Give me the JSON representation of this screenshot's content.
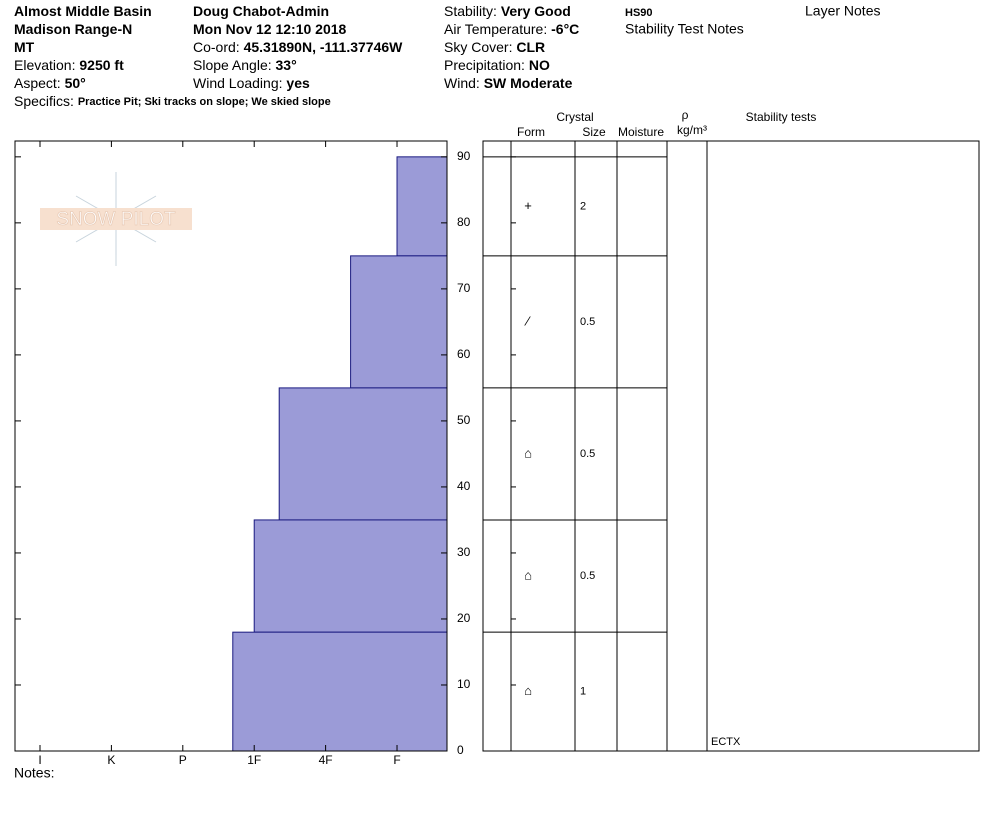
{
  "header": {
    "col1": [
      {
        "value": "Almost Middle Basin"
      },
      {
        "value": "Madison Range-N"
      },
      {
        "value": "MT"
      },
      {
        "label": "Elevation:",
        "value": "9250 ft"
      },
      {
        "label": "Aspect:",
        "value": "50°"
      }
    ],
    "specifics": {
      "label": "Specifics:",
      "value": "Practice Pit; Ski tracks on slope; We skied slope"
    },
    "col2": [
      {
        "value": "Doug Chabot-Admin"
      },
      {
        "value": "Mon Nov 12 12:10 2018"
      },
      {
        "label": "Co-ord:",
        "value": "45.31890N, -111.37746W"
      },
      {
        "label": "Slope Angle:",
        "value": "33°"
      },
      {
        "label": "Wind Loading:",
        "value": "yes"
      }
    ],
    "col3": [
      {
        "label": "Stability:",
        "value": "Very Good"
      },
      {
        "label": "Air Temperature:",
        "value": "-6°C"
      },
      {
        "label": "Sky Cover:",
        "value": "CLR"
      },
      {
        "label": "Precipitation:",
        "value": "NO"
      },
      {
        "label": "Wind:",
        "value": "SW Moderate"
      }
    ],
    "hs": "HS90",
    "stability_test_notes": "Stability Test Notes",
    "layer_notes": "Layer Notes"
  },
  "logo": "SNOW PILOT",
  "columns": {
    "crystal": "Crystal",
    "form": "Form",
    "size": "Size",
    "moisture": "Moisture",
    "rho": "ρ",
    "density_unit": "kg/m³",
    "stability_tests": "Stability tests"
  },
  "chart_data": {
    "type": "snow-profile",
    "ylim": [
      0,
      92.4
    ],
    "yticks": [
      0,
      10,
      20,
      30,
      40,
      50,
      60,
      70,
      80,
      90
    ],
    "xlim": [
      0.3,
      6.35
    ],
    "xticks": [
      {
        "value": 6,
        "label": "I"
      },
      {
        "value": 5,
        "label": "K"
      },
      {
        "value": 4,
        "label": "P"
      },
      {
        "value": 3,
        "label": "1F"
      },
      {
        "value": 2,
        "label": "4F"
      },
      {
        "value": 1,
        "label": "F"
      }
    ],
    "color": "#9b9bd7",
    "layers": [
      {
        "top": 90,
        "bottom": 75,
        "hardness": 1,
        "form": "+",
        "size": 2
      },
      {
        "top": 75,
        "bottom": 55,
        "hardness": 1.65,
        "form": "⁄",
        "size": 0.5
      },
      {
        "top": 55,
        "bottom": 35,
        "hardness": 2.65,
        "form": "⌂",
        "size": 0.5
      },
      {
        "top": 35,
        "bottom": 18,
        "hardness": 3,
        "form": "⌂",
        "size": 0.5
      },
      {
        "top": 18,
        "bottom": 0,
        "hardness": 3.3,
        "form": "⌂",
        "size": 1
      }
    ],
    "stability_tests": [
      "ECTX"
    ]
  },
  "notes": "Notes:"
}
